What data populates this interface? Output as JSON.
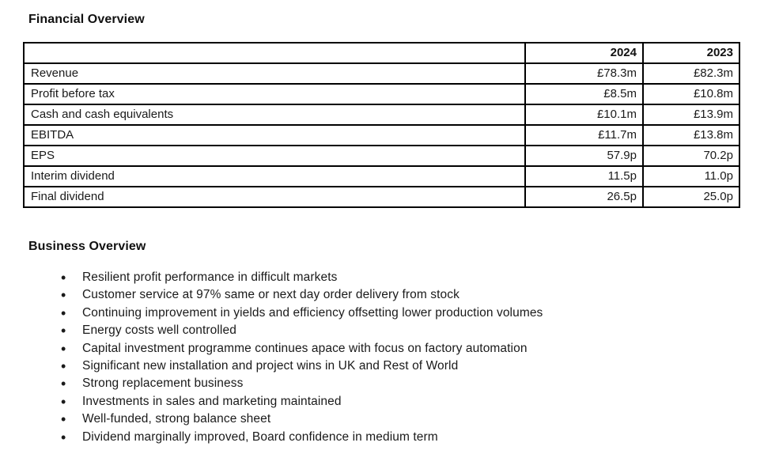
{
  "colors": {
    "background": "#ffffff",
    "text": "#1a1a1a",
    "table_border": "#000000"
  },
  "financial_overview": {
    "title": "Financial Overview",
    "table": {
      "headers": {
        "metric": "",
        "y2024": "2024",
        "y2023": "2023"
      },
      "rows": [
        {
          "label": "Revenue",
          "y2024": "£78.3m",
          "y2023": "£82.3m"
        },
        {
          "label": "Profit before tax",
          "y2024": "£8.5m",
          "y2023": "£10.8m"
        },
        {
          "label": "Cash and cash equivalents",
          "y2024": "£10.1m",
          "y2023": "£13.9m"
        },
        {
          "label": "EBITDA",
          "y2024": "£11.7m",
          "y2023": "£13.8m"
        },
        {
          "label": "EPS",
          "y2024": "57.9p",
          "y2023": "70.2p"
        },
        {
          "label": "Interim dividend",
          "y2024": "11.5p",
          "y2023": "11.0p"
        },
        {
          "label": "Final dividend",
          "y2024": "26.5p",
          "y2023": "25.0p"
        }
      ]
    }
  },
  "business_overview": {
    "title": "Business Overview",
    "bullets": [
      "Resilient profit performance in difficult markets",
      "Customer service at 97% same or next day order delivery from stock",
      "Continuing improvement in yields and efficiency offsetting lower production volumes",
      "Energy costs well controlled",
      "Capital investment programme continues apace with focus on factory automation",
      "Significant new installation and project wins in UK and Rest of World",
      "Strong replacement business",
      "Investments in sales and marketing maintained",
      "Well-funded, strong balance sheet",
      "Dividend marginally improved, Board confidence in medium term"
    ]
  }
}
